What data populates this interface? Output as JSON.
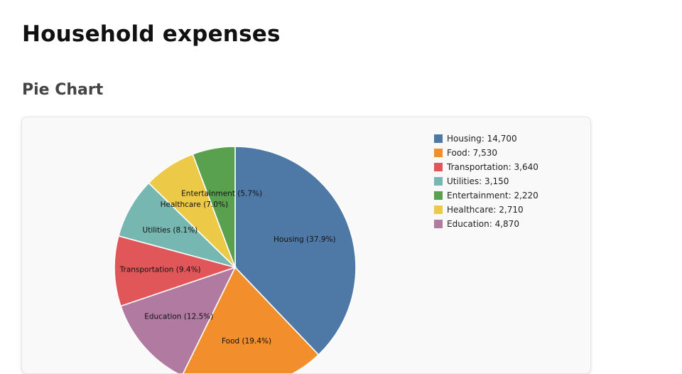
{
  "page": {
    "title": "Household expenses",
    "section_title": "Pie Chart"
  },
  "chart_data": {
    "type": "pie",
    "slices": [
      {
        "label": "Housing",
        "value": 14700,
        "value_text": "14,700",
        "percent_text": "37.9%",
        "color": "#4e79a7"
      },
      {
        "label": "Food",
        "value": 7530,
        "value_text": "7,530",
        "percent_text": "19.4%",
        "color": "#f28e2b"
      },
      {
        "label": "Transportation",
        "value": 3640,
        "value_text": "3,640",
        "percent_text": "9.4%",
        "color": "#e15759"
      },
      {
        "label": "Utilities",
        "value": 3150,
        "value_text": "3,150",
        "percent_text": "8.1%",
        "color": "#76b7b2"
      },
      {
        "label": "Entertainment",
        "value": 2220,
        "value_text": "2,220",
        "percent_text": "5.7%",
        "color": "#59a14f"
      },
      {
        "label": "Healthcare",
        "value": 2710,
        "value_text": "2,710",
        "percent_text": "7.0%",
        "color": "#edc948"
      },
      {
        "label": "Education",
        "value": 4870,
        "value_text": "4,870",
        "percent_text": "12.5%",
        "color": "#b07aa1"
      }
    ],
    "draw_order": [
      "Housing",
      "Food",
      "Education",
      "Transportation",
      "Utilities",
      "Healthcare",
      "Entertainment"
    ],
    "legend_position": "top-right"
  }
}
